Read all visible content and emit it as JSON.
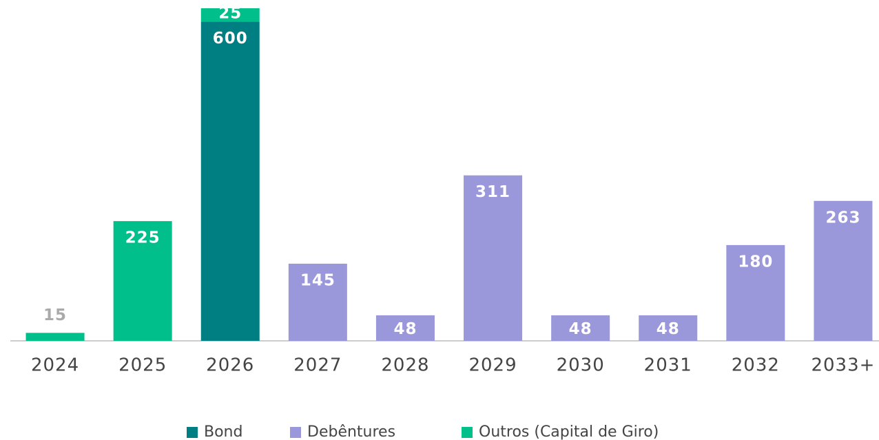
{
  "chart_data": {
    "type": "stacked_bar",
    "categories": [
      "2024",
      "2025",
      "2026",
      "2027",
      "2028",
      "2029",
      "2030",
      "2031",
      "2032",
      "2033+"
    ],
    "series": [
      {
        "name": "Bond",
        "color": "#007f82",
        "values": [
          null,
          null,
          600,
          null,
          null,
          null,
          null,
          null,
          null,
          null
        ]
      },
      {
        "name": "Debêntures",
        "color": "#9b97db",
        "values": [
          null,
          null,
          null,
          145,
          48,
          311,
          48,
          48,
          180,
          263
        ]
      },
      {
        "name": "Outros (Capital de Giro)",
        "color": "#00bf8a",
        "values": [
          15,
          225,
          25,
          null,
          null,
          null,
          null,
          null,
          null,
          null
        ]
      }
    ]
  }
}
